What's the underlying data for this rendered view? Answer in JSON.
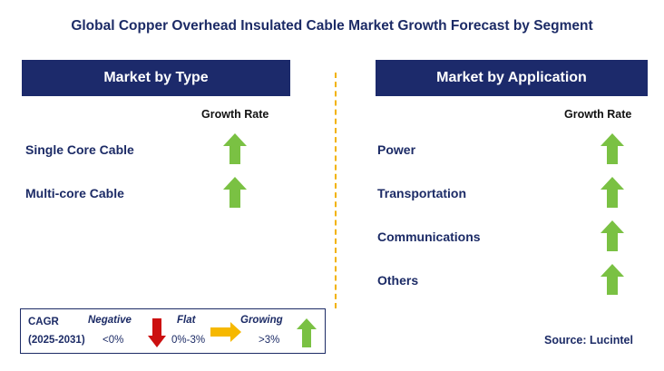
{
  "title": "Global Copper Overhead Insulated Cable Market Growth Forecast by Segment",
  "left_panel": {
    "header": "Market by Type",
    "column_header": "Growth Rate",
    "rows": [
      {
        "label": "Single Core Cable",
        "trend": "growing"
      },
      {
        "label": "Multi-core Cable",
        "trend": "growing"
      }
    ]
  },
  "right_panel": {
    "header": "Market by Application",
    "column_header": "Growth Rate",
    "rows": [
      {
        "label": "Power",
        "trend": "growing"
      },
      {
        "label": "Transportation",
        "trend": "growing"
      },
      {
        "label": "Communications",
        "trend": "growing"
      },
      {
        "label": "Others",
        "trend": "growing"
      }
    ]
  },
  "legend": {
    "cagr": "CAGR",
    "years": "(2025-2031)",
    "negative_label": "Negative",
    "negative_value": "<0%",
    "flat_label": "Flat",
    "flat_value": "0%-3%",
    "growing_label": "Growing",
    "growing_value": ">3%"
  },
  "source": "Source: Lucintel",
  "colors": {
    "header_bg": "#1c2a6b",
    "text_navy": "#1c2b66",
    "up_arrow": "#7ac143",
    "down_arrow": "#cc1010",
    "flat_arrow": "#f6b800",
    "divider": "#f2b200"
  }
}
